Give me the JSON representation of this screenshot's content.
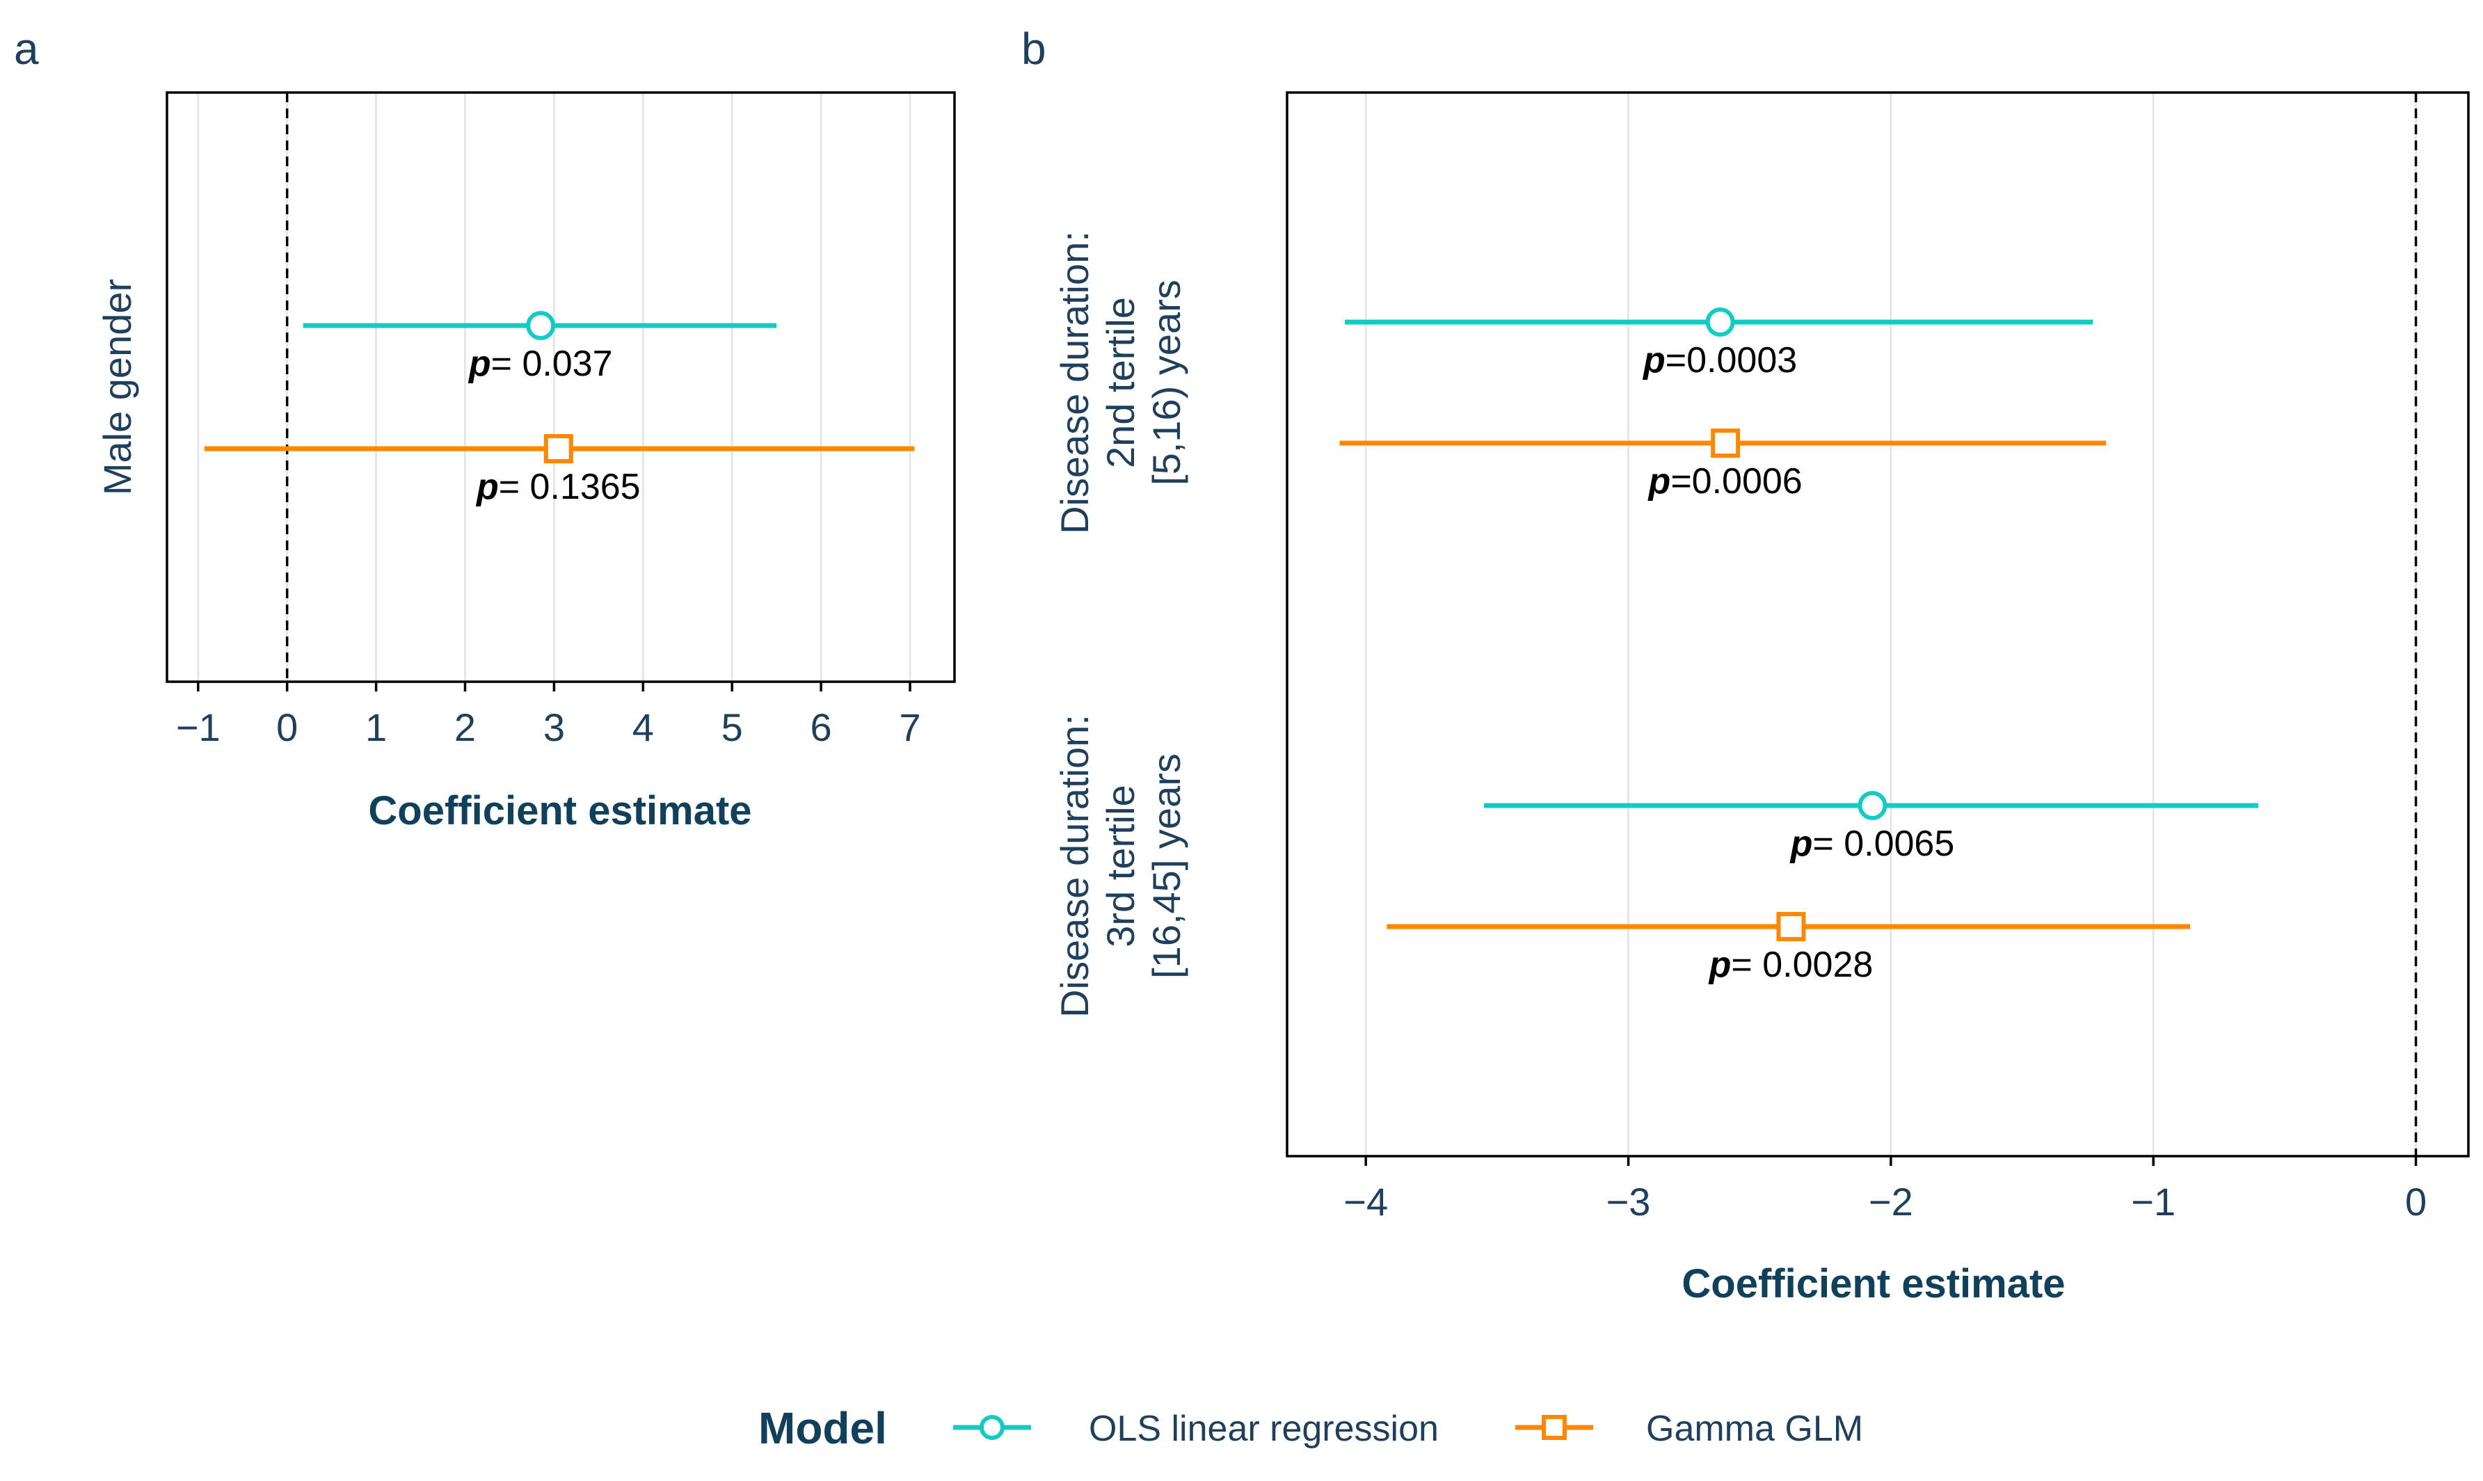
{
  "colors": {
    "ols": "#12cbc4",
    "gamma": "#ff8800",
    "axis": "#1f3f5a",
    "title": "#10405a",
    "grid": "#e6e6e6"
  },
  "chart_data": [
    {
      "type": "forest",
      "panel": "a",
      "panel_letter": "a",
      "xlabel": "Coefficient estimate",
      "xlim": [
        -1.35,
        7.5
      ],
      "xticks": [
        -1,
        0,
        1,
        2,
        3,
        4,
        5,
        6,
        7
      ],
      "xtick_labels": [
        "−1",
        "0",
        "1",
        "2",
        "3",
        "4",
        "5",
        "6",
        "7"
      ],
      "reference_line": 0,
      "grid": "vertical",
      "categories": [
        {
          "label_lines": [
            "Male gender"
          ],
          "estimates": [
            {
              "model": "ols",
              "estimate": 2.85,
              "ci": [
                0.18,
                5.5
              ],
              "p_label": "p",
              "p_value": "= 0.037"
            },
            {
              "model": "gamma",
              "estimate": 3.05,
              "ci": [
                -0.93,
                7.05
              ],
              "p_label": "p",
              "p_value": "= 0.1365"
            }
          ]
        }
      ]
    },
    {
      "type": "forest",
      "panel": "b",
      "panel_letter": "b",
      "xlabel": "Coefficient estimate",
      "xlim": [
        -4.3,
        0.2
      ],
      "xticks": [
        -4,
        -3,
        -2,
        -1,
        0
      ],
      "xtick_labels": [
        "−4",
        "−3",
        "−2",
        "−1",
        "0"
      ],
      "reference_line": 0,
      "grid": "vertical",
      "categories": [
        {
          "label_lines": [
            "Disease duration:",
            "2nd tertile",
            "[5,16) years"
          ],
          "estimates": [
            {
              "model": "ols",
              "estimate": -2.65,
              "ci": [
                -4.08,
                -1.23
              ],
              "p_label": "p",
              "p_value": "=0.0003"
            },
            {
              "model": "gamma",
              "estimate": -2.63,
              "ci": [
                -4.1,
                -1.18
              ],
              "p_label": "p",
              "p_value": "=0.0006"
            }
          ]
        },
        {
          "label_lines": [
            "Disease duration:",
            "3rd tertile",
            "[16,45] years"
          ],
          "estimates": [
            {
              "model": "ols",
              "estimate": -2.07,
              "ci": [
                -3.55,
                -0.6
              ],
              "p_label": "p",
              "p_value": "= 0.0065"
            },
            {
              "model": "gamma",
              "estimate": -2.38,
              "ci": [
                -3.92,
                -0.86
              ],
              "p_label": "p",
              "p_value": "= 0.0028"
            }
          ]
        }
      ]
    }
  ],
  "legend": {
    "title": "Model",
    "items": [
      {
        "model": "ols",
        "label": "OLS linear regression",
        "marker": "circle"
      },
      {
        "model": "gamma",
        "label": "Gamma GLM",
        "marker": "square"
      }
    ]
  }
}
